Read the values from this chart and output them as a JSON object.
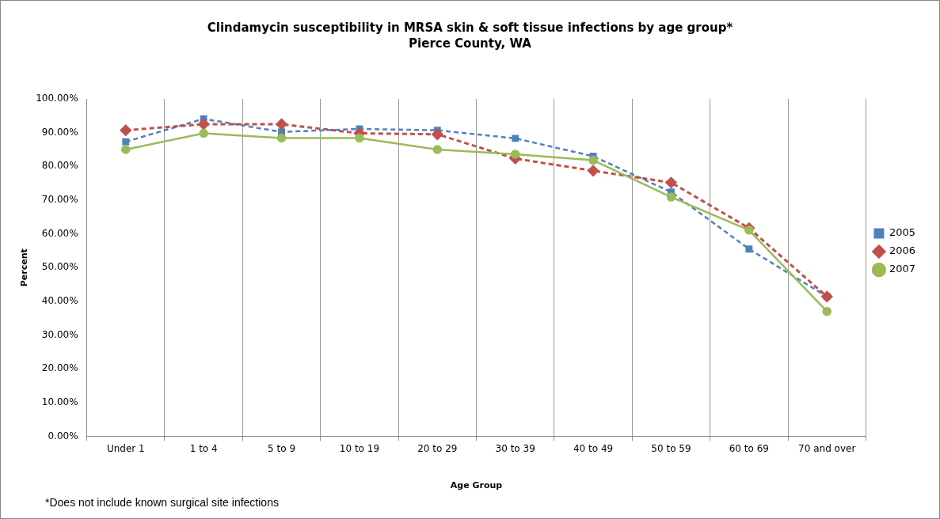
{
  "chart_data": {
    "type": "line",
    "title": "Clindamycin susceptibility in MRSA skin & soft tissue infections by age group*",
    "subtitle": "Pierce County, WA",
    "xlabel": "Age Group",
    "ylabel": "Percent",
    "categories": [
      "Under 1",
      "1 to 4",
      "5 to 9",
      "10 to 19",
      "20 to 29",
      "30 to 39",
      "40 to 49",
      "50 to 59",
      "60 to 69",
      "70 and over"
    ],
    "series": [
      {
        "name": "2005",
        "color": "#4f81bd",
        "marker": "square",
        "line_style": "dashed",
        "values": [
          87.3,
          94.1,
          90.2,
          91.1,
          90.7,
          88.3,
          83.0,
          72.4,
          55.5,
          41.4
        ]
      },
      {
        "name": "2006",
        "color": "#c0504d",
        "marker": "diamond",
        "line_style": "dashed",
        "values": [
          90.7,
          92.5,
          92.5,
          89.8,
          89.5,
          82.3,
          78.7,
          75.2,
          61.7,
          41.4
        ]
      },
      {
        "name": "2007",
        "color": "#9bbb59",
        "marker": "circle",
        "line_style": "solid",
        "values": [
          85.0,
          89.8,
          88.4,
          88.4,
          85.0,
          83.6,
          81.8,
          70.9,
          61.1,
          37.0
        ]
      }
    ],
    "ylim": [
      0,
      100
    ],
    "yticks": [
      {
        "value": 0,
        "label": "0.00%"
      },
      {
        "value": 10,
        "label": "10.00%"
      },
      {
        "value": 20,
        "label": "20.00%"
      },
      {
        "value": 30,
        "label": "30.00%"
      },
      {
        "value": 40,
        "label": "40.00%"
      },
      {
        "value": 50,
        "label": "50.00%"
      },
      {
        "value": 60,
        "label": "60.00%"
      },
      {
        "value": 70,
        "label": "70.00%"
      },
      {
        "value": 80,
        "label": "80.00%"
      },
      {
        "value": 90,
        "label": "90.00%"
      },
      {
        "value": 100,
        "label": "100.00%"
      }
    ],
    "grid": "x",
    "legend": "right",
    "annotations": [
      "*Does not include known surgical site infections"
    ]
  }
}
